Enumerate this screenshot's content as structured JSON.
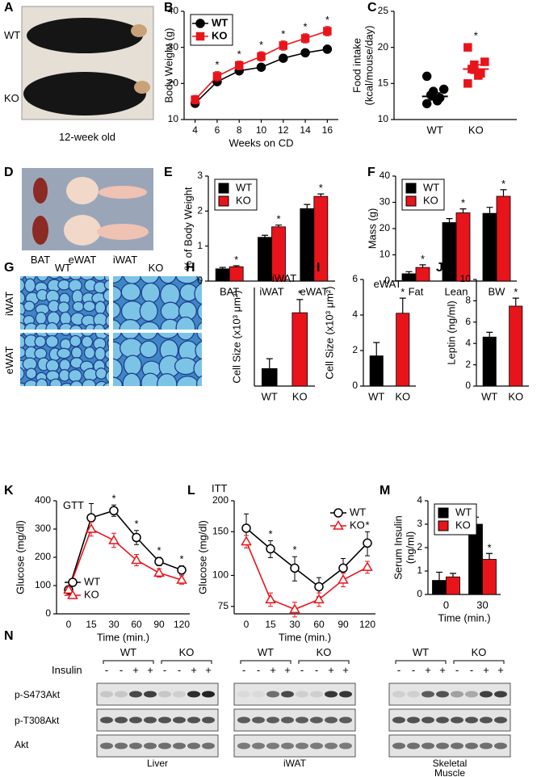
{
  "photo_a": {
    "panel": "A",
    "labels": [
      "WT",
      "KO"
    ],
    "caption": "12-week old"
  },
  "photo_d": {
    "panel": "D",
    "labels": [
      "BAT",
      "eWAT",
      "iWAT"
    ]
  },
  "histology_g": {
    "panel": "G",
    "columns": [
      "WT",
      "KO"
    ],
    "rows": [
      "iWAT",
      "eWAT"
    ]
  },
  "blot_n": {
    "panel": "N",
    "treatment": "Insulin",
    "groups": [
      "WT",
      "KO"
    ],
    "lanes": [
      "-",
      "-",
      "+",
      "+",
      "-",
      "-",
      "+",
      "+"
    ],
    "rows": [
      "p-S473Akt",
      "p-T308Akt",
      "Akt"
    ],
    "tissues": [
      [
        "Liver"
      ],
      [
        "iWAT"
      ],
      [
        "Skeletal",
        "Muscle"
      ]
    ]
  },
  "chart_data": [
    {
      "type": "line",
      "panel": "B",
      "xlabel": "Weeks on CD",
      "ylabel": "Body Weight (g)",
      "x": [
        4,
        6,
        8,
        10,
        12,
        14,
        16
      ],
      "xlim": [
        3,
        17
      ],
      "xticks": [
        4,
        6,
        8,
        10,
        12,
        14,
        16
      ],
      "ylim": [
        10,
        40
      ],
      "yticks": [
        10,
        20,
        30,
        40
      ],
      "legend": "upper left",
      "legend_box": true,
      "series": [
        {
          "name": "WT",
          "color": "#000000",
          "marker": "circle",
          "filled": true,
          "values": [
            14.5,
            20.5,
            23.5,
            24.5,
            27,
            28.5,
            29.5
          ],
          "errors": [
            0.8,
            0.8,
            0.8,
            0.8,
            1,
            0.9,
            0.9
          ]
        },
        {
          "name": "KO",
          "color": "#e8141b",
          "marker": "square",
          "filled": true,
          "values": [
            15.5,
            22,
            25,
            27.5,
            30.5,
            32.5,
            34.5
          ],
          "errors": [
            1.2,
            1.3,
            1.2,
            1.3,
            1.3,
            1.3,
            1.3
          ]
        }
      ],
      "annotations": [
        {
          "x": 6,
          "text": "*"
        },
        {
          "x": 8,
          "text": "*"
        },
        {
          "x": 10,
          "text": "*"
        },
        {
          "x": 12,
          "text": "*"
        },
        {
          "x": 14,
          "text": "*"
        },
        {
          "x": 16,
          "text": "*"
        }
      ]
    },
    {
      "type": "scatter",
      "panel": "C",
      "ylabel": [
        "Food intake",
        "(kcal/mouse/day)"
      ],
      "categories": [
        "WT",
        "KO"
      ],
      "ylim": [
        10,
        25
      ],
      "yticks": [
        10,
        15,
        20,
        25
      ],
      "colors": [
        "#000000",
        "#e8141b"
      ],
      "markers": [
        "circle",
        "square"
      ],
      "values": [
        [
          12.2,
          12.6,
          13.0,
          13.4,
          13.9,
          14.2,
          16.0
        ],
        [
          15.0,
          16.1,
          16.4,
          17.0,
          17.6,
          18.0,
          20.0
        ]
      ],
      "means": [
        13.2,
        17.0
      ],
      "errors": [
        0.5,
        0.6
      ],
      "annotations": [
        {
          "x": "KO",
          "text": "*"
        }
      ]
    },
    {
      "type": "bar",
      "panel": "E",
      "ylabel": "% of Body Weight",
      "categories": [
        "BAT",
        "iWAT",
        "eWAT"
      ],
      "ylim": [
        0,
        3
      ],
      "yticks": [
        0,
        1,
        2,
        3
      ],
      "legend": "upper left",
      "legend_box": true,
      "series": [
        {
          "name": "WT",
          "color": "#000000",
          "values": [
            0.35,
            1.25,
            2.07
          ],
          "errors": [
            0.04,
            0.06,
            0.12
          ]
        },
        {
          "name": "KO",
          "color": "#e8141b",
          "values": [
            0.41,
            1.55,
            2.42
          ],
          "errors": [
            0.03,
            0.05,
            0.07
          ]
        }
      ],
      "annotations": [
        {
          "x": "BAT",
          "text": "*"
        },
        {
          "x": "iWAT",
          "text": "*"
        },
        {
          "x": "eWAT",
          "text": "*"
        }
      ]
    },
    {
      "type": "bar",
      "panel": "F",
      "ylabel": "Mass (g)",
      "categories": [
        "Fat",
        "Lean",
        "BW"
      ],
      "ylim": [
        0,
        40
      ],
      "yticks": [
        0,
        10,
        20,
        30,
        40
      ],
      "legend": "upper left",
      "legend_box": true,
      "series": [
        {
          "name": "WT",
          "color": "#000000",
          "values": [
            2.8,
            22.3,
            25.8
          ],
          "errors": [
            0.8,
            1.5,
            2.3
          ]
        },
        {
          "name": "KO",
          "color": "#e8141b",
          "values": [
            5.2,
            26.0,
            32.3
          ],
          "errors": [
            1.0,
            1.5,
            2.5
          ]
        }
      ],
      "annotations": [
        {
          "x": "Fat",
          "text": "*"
        },
        {
          "x": "Lean",
          "text": "*"
        },
        {
          "x": "BW",
          "text": "*"
        }
      ]
    },
    {
      "type": "bar",
      "panel": "H",
      "title": "iWAT",
      "ylabel": "Cell Size (x10³ μm²)",
      "categories": [
        "WT",
        "KO"
      ],
      "ylim": [
        0,
        4.5
      ],
      "colors": [
        "#000000",
        "#e8141b"
      ],
      "values": [
        0.8,
        3.35
      ],
      "errors": [
        0.45,
        0.6
      ],
      "annotations": [
        {
          "x": "KO",
          "text": "*"
        }
      ]
    },
    {
      "type": "bar",
      "panel": "I",
      "title": "eWAT",
      "ylabel": "Cell Size (x10³ μm²)",
      "categories": [
        "WT",
        "KO"
      ],
      "ylim": [
        0,
        6
      ],
      "yticks": [
        0,
        2,
        4,
        6
      ],
      "colors": [
        "#000000",
        "#e8141b"
      ],
      "values": [
        1.7,
        4.1
      ],
      "errors": [
        0.75,
        0.85
      ],
      "annotations": [
        {
          "x": "KO",
          "text": "*"
        }
      ]
    },
    {
      "type": "bar",
      "panel": "J",
      "ylabel": "Leptin (ng/ml)",
      "categories": [
        "WT",
        "KO"
      ],
      "ylim": [
        0,
        10
      ],
      "yticks": [
        0,
        2,
        4,
        6,
        8,
        10
      ],
      "colors": [
        "#000000",
        "#e8141b"
      ],
      "values": [
        4.6,
        7.5
      ],
      "errors": [
        0.45,
        0.75
      ],
      "annotations": [
        {
          "x": "KO",
          "text": "*"
        }
      ]
    },
    {
      "type": "line",
      "panel": "K",
      "title": "GTT",
      "xlabel": "Time (min.)",
      "ylabel": "Glucose (mg/dl)",
      "categories": [
        "0",
        "15",
        "30",
        "60",
        "90",
        "120"
      ],
      "ylim": [
        0,
        400
      ],
      "yticks": [
        0,
        100,
        200,
        300,
        400
      ],
      "legend": "lower left",
      "series": [
        {
          "name": "WT",
          "color": "#000000",
          "marker": "circle",
          "filled": false,
          "values": [
            85,
            340,
            365,
            270,
            185,
            155
          ],
          "errors": [
            10,
            50,
            20,
            25,
            15,
            15
          ]
        },
        {
          "name": "KO",
          "color": "#e8141b",
          "marker": "triangle",
          "filled": false,
          "values": [
            85,
            300,
            260,
            190,
            145,
            120
          ],
          "errors": [
            10,
            25,
            25,
            20,
            15,
            15
          ]
        }
      ],
      "annotations": [
        {
          "x": "30",
          "text": "*"
        },
        {
          "x": "60",
          "text": "*"
        },
        {
          "x": "90",
          "text": "*"
        },
        {
          "x": "120",
          "text": "*"
        }
      ]
    },
    {
      "type": "line",
      "panel": "L",
      "title": "ITT",
      "xlabel": "Time (min.)",
      "ylabel": "Glucose (mg/dl)",
      "categories": [
        "0",
        "15",
        "30",
        "60",
        "90",
        "120"
      ],
      "log_y": true,
      "ylim": [
        70,
        200
      ],
      "yticks": [
        75,
        100,
        150,
        200
      ],
      "legend": "upper right",
      "series": [
        {
          "name": "WT",
          "color": "#000000",
          "marker": "circle",
          "filled": false,
          "values": [
            155,
            128,
            107,
            90,
            107,
            135
          ],
          "errors": [
            22,
            10,
            12,
            8,
            10,
            15
          ]
        },
        {
          "name": "KO",
          "color": "#e8141b",
          "marker": "triangle",
          "filled": false,
          "values": [
            137,
            80,
            73,
            80,
            96,
            108
          ],
          "errors": [
            8,
            5,
            5,
            5,
            6,
            6
          ]
        }
      ],
      "annotations": [
        {
          "x": "15",
          "text": "*"
        },
        {
          "x": "30",
          "text": "*"
        },
        {
          "x": "120",
          "text": "*"
        }
      ]
    },
    {
      "type": "bar",
      "panel": "M",
      "xlabel": "Time (min.)",
      "ylabel": [
        "Serum Insulin",
        "(ng/ml)"
      ],
      "categories": [
        "0",
        "30"
      ],
      "ylim": [
        0,
        4
      ],
      "yticks": [
        0,
        1,
        2,
        3,
        4
      ],
      "legend": "upper left",
      "legend_box": true,
      "series": [
        {
          "name": "WT",
          "color": "#000000",
          "values": [
            0.6,
            3.0
          ],
          "errors": [
            0.35,
            0.3
          ]
        },
        {
          "name": "KO",
          "color": "#e8141b",
          "values": [
            0.75,
            1.5
          ],
          "errors": [
            0.15,
            0.25
          ]
        }
      ],
      "annotations": [
        {
          "x": "30",
          "text": "*"
        }
      ]
    }
  ]
}
